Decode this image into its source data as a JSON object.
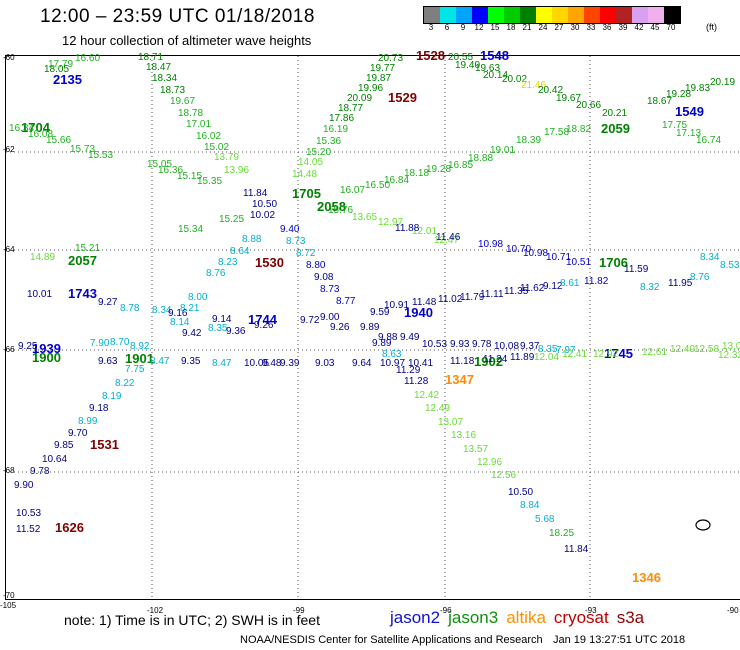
{
  "title": "12:00 – 23:59 UTC 01/18/2018",
  "subtitle": "12 hour collection of altimeter wave heights",
  "colorbar": {
    "labels": [
      "3",
      "6",
      "9",
      "12",
      "15",
      "18",
      "21",
      "24",
      "27",
      "30",
      "33",
      "36",
      "39",
      "42",
      "45",
      "70"
    ],
    "unit": "(ft)",
    "colors": [
      "#7f7f7f",
      "#00e5e5",
      "#00a5ff",
      "#0000ff",
      "#00ff00",
      "#00cc00",
      "#008000",
      "#ffff00",
      "#ffd700",
      "#ffa500",
      "#ff4500",
      "#ff0000",
      "#b22222",
      "#d8a0f0",
      "#f0b0f0",
      "#000000"
    ]
  },
  "axes": {
    "lon_ticks": [
      "-105",
      "-102",
      "-99",
      "-96",
      "-93",
      "-90"
    ],
    "lat_ticks": [
      "-60",
      "-62",
      "-64",
      "-66",
      "-68",
      "-70"
    ]
  },
  "note": "note: 1) Time is in UTC; 2) SWH is in feet",
  "legend": [
    {
      "name": "jason2",
      "color": "#1010d0"
    },
    {
      "name": "jason3",
      "color": "#109010"
    },
    {
      "name": "altika",
      "color": "#ff9000"
    },
    {
      "name": "cryosat",
      "color": "#c00000"
    },
    {
      "name": "s3a",
      "color": "#900000"
    }
  ],
  "footer_left": "NOAA/NESDIS Center for Satellite Applications and Research",
  "footer_right": "Jan 19 13:27:51 UTC 2018",
  "colors": {
    "green_dark": "#008000",
    "green": "#20b020",
    "green_light": "#66dd33",
    "yellow": "#d8d800",
    "blue": "#0000cc",
    "navy": "#000088",
    "cyan": "#00b0d0",
    "orange": "#ff8c00",
    "maroon": "#800000"
  },
  "pass_labels": [
    {
      "text": "2135",
      "c": "blue"
    },
    {
      "text": "1704",
      "c": "green_dark"
    },
    {
      "text": "1528",
      "c": "maroon"
    },
    {
      "text": "1548",
      "c": "blue"
    },
    {
      "text": "1529",
      "c": "maroon"
    },
    {
      "text": "1549",
      "c": "blue"
    },
    {
      "text": "2059",
      "c": "green_dark"
    },
    {
      "text": "1705",
      "c": "green_dark"
    },
    {
      "text": "2058",
      "c": "green_dark"
    },
    {
      "text": "2057",
      "c": "green_dark"
    },
    {
      "text": "1530",
      "c": "maroon"
    },
    {
      "text": "1706",
      "c": "green_dark"
    },
    {
      "text": "1743",
      "c": "blue"
    },
    {
      "text": "1744",
      "c": "blue"
    },
    {
      "text": "1940",
      "c": "blue"
    },
    {
      "text": "1939",
      "c": "blue"
    },
    {
      "text": "1900",
      "c": "green_dark"
    },
    {
      "text": "1901",
      "c": "green_dark"
    },
    {
      "text": "1902",
      "c": "green_dark"
    },
    {
      "text": "1745",
      "c": "blue"
    },
    {
      "text": "1347",
      "c": "orange"
    },
    {
      "text": "1531",
      "c": "maroon"
    },
    {
      "text": "1626",
      "c": "maroon"
    },
    {
      "text": "1346",
      "c": "orange"
    }
  ],
  "values": [
    {
      "text": "16.60",
      "c": "green"
    },
    {
      "text": "18.71",
      "c": "green_dark"
    },
    {
      "text": "17.79",
      "c": "green"
    },
    {
      "text": "18.47",
      "c": "green_dark"
    },
    {
      "text": "18.05",
      "c": "green_dark"
    },
    {
      "text": "18.34",
      "c": "green_dark"
    },
    {
      "text": "18.73",
      "c": "green_dark"
    },
    {
      "text": "19.67",
      "c": "green"
    },
    {
      "text": "18.78",
      "c": "green"
    },
    {
      "text": "17.01",
      "c": "green"
    },
    {
      "text": "16.02",
      "c": "green"
    },
    {
      "text": "15.02",
      "c": "green"
    },
    {
      "text": "16.34",
      "c": "green"
    },
    {
      "text": "16.08",
      "c": "green"
    },
    {
      "text": "15.66",
      "c": "green"
    },
    {
      "text": "15.73",
      "c": "green"
    },
    {
      "text": "15.53",
      "c": "green"
    },
    {
      "text": "15.05",
      "c": "green"
    },
    {
      "text": "16.36",
      "c": "green"
    },
    {
      "text": "15.15",
      "c": "green"
    },
    {
      "text": "15.35",
      "c": "green"
    },
    {
      "text": "13.79",
      "c": "green_light"
    },
    {
      "text": "13.96",
      "c": "green_light"
    },
    {
      "text": "20.73",
      "c": "green_dark"
    },
    {
      "text": "19.77",
      "c": "green_dark"
    },
    {
      "text": "19.87",
      "c": "green_dark"
    },
    {
      "text": "19.96",
      "c": "green_dark"
    },
    {
      "text": "20.09",
      "c": "green_dark"
    },
    {
      "text": "18.77",
      "c": "green_dark"
    },
    {
      "text": "17.86",
      "c": "green_dark"
    },
    {
      "text": "16.19",
      "c": "green"
    },
    {
      "text": "15.36",
      "c": "green"
    },
    {
      "text": "15.20",
      "c": "green"
    },
    {
      "text": "14.05",
      "c": "green_light"
    },
    {
      "text": "14.48",
      "c": "green_light"
    },
    {
      "text": "20.55",
      "c": "green_dark"
    },
    {
      "text": "19.40",
      "c": "green_dark"
    },
    {
      "text": "19.63",
      "c": "green_dark"
    },
    {
      "text": "20.14",
      "c": "green_dark"
    },
    {
      "text": "20.02",
      "c": "green_dark"
    },
    {
      "text": "21.46",
      "c": "yellow"
    },
    {
      "text": "20.42",
      "c": "green_dark"
    },
    {
      "text": "19.67",
      "c": "green_dark"
    },
    {
      "text": "20.66",
      "c": "green_dark"
    },
    {
      "text": "20.21",
      "c": "green_dark"
    },
    {
      "text": "18.67",
      "c": "green_dark"
    },
    {
      "text": "19.28",
      "c": "green_dark"
    },
    {
      "text": "19.83",
      "c": "green_dark"
    },
    {
      "text": "20.19",
      "c": "green_dark"
    },
    {
      "text": "17.75",
      "c": "green"
    },
    {
      "text": "17.13",
      "c": "green"
    },
    {
      "text": "16.74",
      "c": "green"
    },
    {
      "text": "18.82",
      "c": "green"
    },
    {
      "text": "17.58",
      "c": "green"
    },
    {
      "text": "18.39",
      "c": "green"
    },
    {
      "text": "19.01",
      "c": "green"
    },
    {
      "text": "18.88",
      "c": "green"
    },
    {
      "text": "16.85",
      "c": "green"
    },
    {
      "text": "19.28",
      "c": "green"
    },
    {
      "text": "18.18",
      "c": "green"
    },
    {
      "text": "16.84",
      "c": "green"
    },
    {
      "text": "16.50",
      "c": "green"
    },
    {
      "text": "16.07",
      "c": "green"
    },
    {
      "text": "15.76",
      "c": "green"
    },
    {
      "text": "13.65",
      "c": "green_light"
    },
    {
      "text": "12.97",
      "c": "green_light"
    },
    {
      "text": "12.01",
      "c": "green_light"
    },
    {
      "text": "12.47",
      "c": "green_light"
    },
    {
      "text": "11.84",
      "c": "navy"
    },
    {
      "text": "10.50",
      "c": "navy"
    },
    {
      "text": "10.02",
      "c": "navy"
    },
    {
      "text": "9.40",
      "c": "blue"
    },
    {
      "text": "8.73",
      "c": "cyan"
    },
    {
      "text": "8.72",
      "c": "cyan"
    },
    {
      "text": "8.80",
      "c": "blue"
    },
    {
      "text": "9.08",
      "c": "navy"
    },
    {
      "text": "8.73",
      "c": "blue"
    },
    {
      "text": "8.77",
      "c": "blue"
    },
    {
      "text": "11.88",
      "c": "navy"
    },
    {
      "text": "11.46",
      "c": "navy"
    },
    {
      "text": "10.98",
      "c": "blue"
    },
    {
      "text": "10.70",
      "c": "blue"
    },
    {
      "text": "10.98",
      "c": "blue"
    },
    {
      "text": "10.71",
      "c": "blue"
    },
    {
      "text": "10.51",
      "c": "blue"
    },
    {
      "text": "11.82",
      "c": "blue"
    },
    {
      "text": "11.59",
      "c": "navy"
    },
    {
      "text": "11.95",
      "c": "navy"
    },
    {
      "text": "15.34",
      "c": "green"
    },
    {
      "text": "15.25",
      "c": "green"
    },
    {
      "text": "15.21",
      "c": "green"
    },
    {
      "text": "14.89",
      "c": "green_light"
    },
    {
      "text": "8.64",
      "c": "cyan"
    },
    {
      "text": "8.88",
      "c": "cyan"
    },
    {
      "text": "8.23",
      "c": "cyan"
    },
    {
      "text": "8.76",
      "c": "cyan"
    },
    {
      "text": "8.00",
      "c": "cyan"
    },
    {
      "text": "8.21",
      "c": "cyan"
    },
    {
      "text": "10.01",
      "c": "navy"
    },
    {
      "text": "9.27",
      "c": "navy"
    },
    {
      "text": "8.78",
      "c": "cyan"
    },
    {
      "text": "8.34",
      "c": "cyan"
    },
    {
      "text": "8.14",
      "c": "cyan"
    },
    {
      "text": "9.14",
      "c": "navy"
    },
    {
      "text": "9.16",
      "c": "navy"
    },
    {
      "text": "9.42",
      "c": "navy"
    },
    {
      "text": "8.35",
      "c": "cyan"
    },
    {
      "text": "9.36",
      "c": "navy"
    },
    {
      "text": "9.26",
      "c": "navy"
    },
    {
      "text": "9.72",
      "c": "navy"
    },
    {
      "text": "9.00",
      "c": "navy"
    },
    {
      "text": "9.26",
      "c": "navy"
    },
    {
      "text": "9.89",
      "c": "navy"
    },
    {
      "text": "9.59",
      "c": "navy"
    },
    {
      "text": "10.91",
      "c": "navy"
    },
    {
      "text": "11.48",
      "c": "navy"
    },
    {
      "text": "11.02",
      "c": "navy"
    },
    {
      "text": "11.79",
      "c": "navy"
    },
    {
      "text": "11.11",
      "c": "navy"
    },
    {
      "text": "11.35",
      "c": "navy"
    },
    {
      "text": "11.62",
      "c": "navy"
    },
    {
      "text": "9.12",
      "c": "navy"
    },
    {
      "text": "8.61",
      "c": "cyan"
    },
    {
      "text": "8.70",
      "c": "cyan"
    },
    {
      "text": "7.90",
      "c": "cyan"
    },
    {
      "text": "8.92",
      "c": "cyan"
    },
    {
      "text": "9.25",
      "c": "navy"
    },
    {
      "text": "9.49",
      "c": "navy"
    },
    {
      "text": "9.88",
      "c": "navy"
    },
    {
      "text": "9.89",
      "c": "navy"
    },
    {
      "text": "10.53",
      "c": "navy"
    },
    {
      "text": "9.93",
      "c": "navy"
    },
    {
      "text": "9.78",
      "c": "navy"
    },
    {
      "text": "10.08",
      "c": "navy"
    },
    {
      "text": "9.37",
      "c": "navy"
    },
    {
      "text": "8.35",
      "c": "cyan"
    },
    {
      "text": "7.97",
      "c": "cyan"
    },
    {
      "text": "8.63",
      "c": "cyan"
    },
    {
      "text": "9.63",
      "c": "navy"
    },
    {
      "text": "8.47",
      "c": "cyan"
    },
    {
      "text": "9.35",
      "c": "navy"
    },
    {
      "text": "8.47",
      "c": "cyan"
    },
    {
      "text": "10.05",
      "c": "navy"
    },
    {
      "text": "9.48",
      "c": "navy"
    },
    {
      "text": "9.39",
      "c": "navy"
    },
    {
      "text": "9.03",
      "c": "navy"
    },
    {
      "text": "9.64",
      "c": "navy"
    },
    {
      "text": "10.97",
      "c": "navy"
    },
    {
      "text": "10.41",
      "c": "navy"
    },
    {
      "text": "11.18",
      "c": "navy"
    },
    {
      "text": "11.24",
      "c": "navy"
    },
    {
      "text": "11.89",
      "c": "navy"
    },
    {
      "text": "12.04",
      "c": "green_light"
    },
    {
      "text": "12.41",
      "c": "green_light"
    },
    {
      "text": "12.92",
      "c": "green_light"
    },
    {
      "text": "12.61",
      "c": "green_light"
    },
    {
      "text": "12.49",
      "c": "green_light"
    },
    {
      "text": "12.58",
      "c": "green_light"
    },
    {
      "text": "13.02",
      "c": "green_light"
    },
    {
      "text": "12.32",
      "c": "green_light"
    },
    {
      "text": "8.32",
      "c": "cyan"
    },
    {
      "text": "8.34",
      "c": "cyan"
    },
    {
      "text": "8.53",
      "c": "cyan"
    },
    {
      "text": "8.76",
      "c": "cyan"
    },
    {
      "text": "7.75",
      "c": "cyan"
    },
    {
      "text": "8.22",
      "c": "cyan"
    },
    {
      "text": "8.19",
      "c": "cyan"
    },
    {
      "text": "9.18",
      "c": "navy"
    },
    {
      "text": "8.99",
      "c": "cyan"
    },
    {
      "text": "9.70",
      "c": "navy"
    },
    {
      "text": "9.85",
      "c": "navy"
    },
    {
      "text": "10.64",
      "c": "navy"
    },
    {
      "text": "9.78",
      "c": "navy"
    },
    {
      "text": "9.90",
      "c": "navy"
    },
    {
      "text": "10.53",
      "c": "navy"
    },
    {
      "text": "11.52",
      "c": "navy"
    },
    {
      "text": "11.29",
      "c": "navy"
    },
    {
      "text": "11.28",
      "c": "navy"
    },
    {
      "text": "12.42",
      "c": "green_light"
    },
    {
      "text": "12.49",
      "c": "green_light"
    },
    {
      "text": "13.07",
      "c": "green_light"
    },
    {
      "text": "13.16",
      "c": "green_light"
    },
    {
      "text": "13.57",
      "c": "green_light"
    },
    {
      "text": "12.96",
      "c": "green_light"
    },
    {
      "text": "12.56",
      "c": "green_light"
    },
    {
      "text": "10.50",
      "c": "navy"
    },
    {
      "text": "8.84",
      "c": "cyan"
    },
    {
      "text": "5.68",
      "c": "cyan"
    },
    {
      "text": "18.25",
      "c": "green"
    },
    {
      "text": "11.84",
      "c": "navy"
    }
  ]
}
